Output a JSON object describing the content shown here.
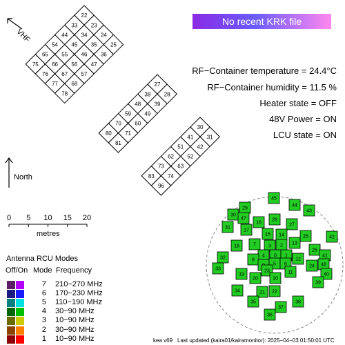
{
  "banner": {
    "text": "No recent KRK file",
    "colors": [
      "#8a2be2",
      "#6a5cff",
      "#ff88ee"
    ]
  },
  "status": {
    "temperature": "RF−Container temperature = 24.4°C",
    "humidity": "RF−Container humidity = 11.5 %",
    "heater": "Heater state = OFF",
    "power": "48V Power = ON",
    "lcu": "LCU state = ON"
  },
  "vhf_label": "VHF",
  "north_label": "North",
  "scale": {
    "ticks": [
      "0",
      "5",
      "10",
      "15",
      "20"
    ],
    "unit": "metres"
  },
  "vhf_groups": [
    {
      "name": "group-1",
      "tiles": [
        "22",
        "33",
        "23",
        "44",
        "34",
        "24",
        "54",
        "45",
        "35",
        "25",
        "65",
        "55",
        "46",
        "36",
        "75",
        "66",
        "56",
        "47",
        "76",
        "67",
        "57",
        "77",
        "68",
        "78"
      ]
    },
    {
      "name": "group-2",
      "tiles": [
        "27",
        "38",
        "28",
        "48",
        "39",
        "59",
        "49",
        "70",
        "60",
        "80",
        "71",
        "81"
      ]
    },
    {
      "name": "group-3",
      "tiles": [
        "30",
        "41",
        "31",
        "51",
        "42",
        "62",
        "52",
        "73",
        "63",
        "83",
        "74",
        "96"
      ]
    }
  ],
  "hba_tiles": [
    {
      "id": "45",
      "active": true
    },
    {
      "id": "44",
      "active": true
    },
    {
      "id": "43",
      "active": true
    },
    {
      "id": "29",
      "active": true
    },
    {
      "id": "30",
      "active": true
    },
    {
      "id": "47",
      "active": true
    },
    {
      "id": "31",
      "active": true
    },
    {
      "id": "17",
      "active": true
    },
    {
      "id": "16",
      "active": true
    },
    {
      "id": "28",
      "active": true
    },
    {
      "id": "27",
      "active": true
    },
    {
      "id": "15",
      "active": true
    },
    {
      "id": "14",
      "active": true
    },
    {
      "id": "26",
      "active": true
    },
    {
      "id": "42",
      "active": true
    },
    {
      "id": "18",
      "active": true
    },
    {
      "id": "7",
      "active": true
    },
    {
      "id": "3",
      "active": true
    },
    {
      "id": "2",
      "active": true
    },
    {
      "id": "13",
      "active": true
    },
    {
      "id": "32",
      "active": true
    },
    {
      "id": "4",
      "active": true
    },
    {
      "id": "0",
      "active": true
    },
    {
      "id": "1",
      "active": true
    },
    {
      "id": "25",
      "active": true
    },
    {
      "id": "41",
      "active": true
    },
    {
      "id": "8",
      "active": true
    },
    {
      "id": "9",
      "active": true
    },
    {
      "id": "5",
      "active": true
    },
    {
      "id": "6",
      "active": true
    },
    {
      "id": "12",
      "active": true
    },
    {
      "id": "24",
      "active": true
    },
    {
      "id": "46",
      "active": true
    },
    {
      "id": "33",
      "active": true
    },
    {
      "id": "11",
      "active": true
    },
    {
      "id": "23",
      "active": true
    },
    {
      "id": "19",
      "active": true
    },
    {
      "id": "20",
      "active": true
    },
    {
      "id": "10",
      "active": true
    },
    {
      "id": "40",
      "active": true
    },
    {
      "id": "39",
      "active": true
    },
    {
      "id": "34",
      "active": true
    },
    {
      "id": "21",
      "active": true
    },
    {
      "id": "22",
      "active": true
    },
    {
      "id": "38",
      "active": true
    },
    {
      "id": "35",
      "active": true
    },
    {
      "id": "37",
      "active": true
    },
    {
      "id": "36",
      "active": true
    }
  ],
  "hba_color": "#22cc22",
  "legend": {
    "title": "Antenna RCU Modes",
    "col_off_on": "Off/On",
    "col_mode": "Mode",
    "col_frequency": "Frequency",
    "rows": [
      {
        "mode": "7",
        "freq": "210−270 MHz",
        "off": "#5b1f66",
        "on": "#b400ff"
      },
      {
        "mode": "6",
        "freq": "170−230 MHz",
        "off": "#1a1a80",
        "on": "#1a1aff"
      },
      {
        "mode": "5",
        "freq": "110−190 MHz",
        "off": "#008080",
        "on": "#00e0e0"
      },
      {
        "mode": "4",
        "freq": "30−90 MHz",
        "off": "#006400",
        "on": "#00c000"
      },
      {
        "mode": "3",
        "freq": "10−90 MHz",
        "off": "#6b6b00",
        "on": "#cccc00"
      },
      {
        "mode": "2",
        "freq": "30−90 MHz",
        "off": "#8b4500",
        "on": "#ff7f00"
      },
      {
        "mode": "1",
        "freq": "10−90 MHz",
        "off": "#8b0000",
        "on": "#ff0000"
      }
    ]
  },
  "footer": {
    "version": "kea v69",
    "updated": "Last updated (kaira01/kairamonitor): 2025−04−03 01:50:01 UTC"
  }
}
